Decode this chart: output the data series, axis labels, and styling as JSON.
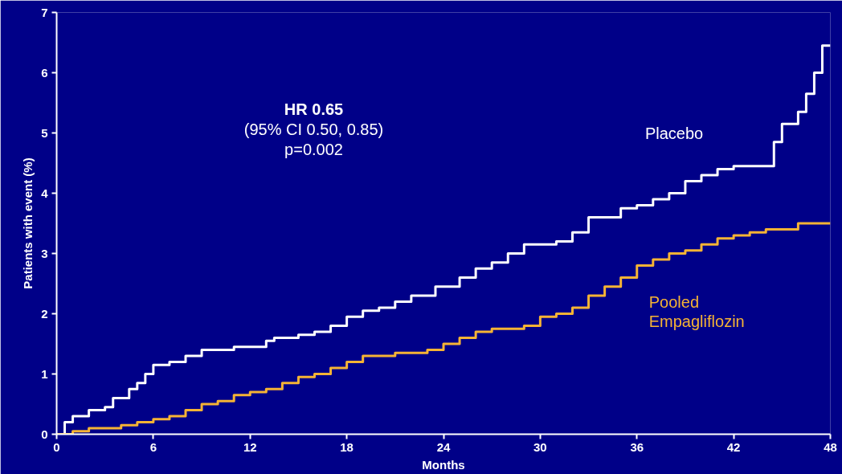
{
  "chart_data": {
    "type": "step",
    "xlabel": "Months",
    "ylabel": "Patients with event (%)",
    "annotations": [
      "HR 0.65",
      "(95% CI 0.50, 0.85)",
      "p=0.002"
    ],
    "xlim": [
      0,
      48
    ],
    "xticks": [
      0,
      6,
      12,
      18,
      24,
      30,
      36,
      42,
      48
    ],
    "ylim": [
      0,
      7
    ],
    "yticks": [
      0,
      1,
      2,
      3,
      4,
      5,
      6,
      7
    ],
    "grid": false,
    "series": [
      {
        "name": "Placebo",
        "color": "#ffffff",
        "x": [
          0,
          0.5,
          1,
          2,
          3,
          3.5,
          4.5,
          5,
          5.5,
          6,
          7,
          8,
          9,
          11,
          13,
          13.5,
          15,
          16,
          17,
          18,
          19,
          20,
          21,
          22,
          23.5,
          25,
          26,
          27,
          28,
          29,
          31,
          32,
          33,
          35,
          36,
          37,
          38,
          39,
          40,
          41,
          42,
          44.5,
          45,
          46,
          46.5,
          47,
          47.5,
          48
        ],
        "values": [
          0,
          0.2,
          0.3,
          0.4,
          0.45,
          0.6,
          0.75,
          0.85,
          1.0,
          1.15,
          1.2,
          1.3,
          1.4,
          1.45,
          1.55,
          1.6,
          1.65,
          1.7,
          1.8,
          1.95,
          2.05,
          2.1,
          2.2,
          2.3,
          2.45,
          2.6,
          2.75,
          2.85,
          3.0,
          3.15,
          3.2,
          3.35,
          3.6,
          3.75,
          3.8,
          3.9,
          4.0,
          4.2,
          4.3,
          4.4,
          4.45,
          4.85,
          5.15,
          5.35,
          5.65,
          6.0,
          6.45,
          6.45
        ]
      },
      {
        "name": "Pooled\nEmpagliflozin",
        "color": "#f5b335",
        "x": [
          0,
          1,
          2,
          4,
          5,
          6,
          7,
          8,
          9,
          10,
          11,
          12,
          13,
          14,
          15,
          16,
          17,
          18,
          19,
          21,
          23,
          24,
          25,
          26,
          27,
          29,
          30,
          31,
          32,
          33,
          34,
          35,
          36,
          37,
          38,
          39,
          40,
          41,
          42,
          43,
          44,
          46,
          48
        ],
        "values": [
          0,
          0.05,
          0.1,
          0.15,
          0.2,
          0.25,
          0.3,
          0.4,
          0.5,
          0.55,
          0.65,
          0.7,
          0.75,
          0.85,
          0.95,
          1.0,
          1.1,
          1.2,
          1.3,
          1.35,
          1.4,
          1.5,
          1.6,
          1.7,
          1.75,
          1.8,
          1.95,
          2.0,
          2.1,
          2.3,
          2.45,
          2.6,
          2.8,
          2.9,
          3.0,
          3.05,
          3.15,
          3.25,
          3.3,
          3.35,
          3.4,
          3.5,
          3.5
        ]
      }
    ]
  }
}
